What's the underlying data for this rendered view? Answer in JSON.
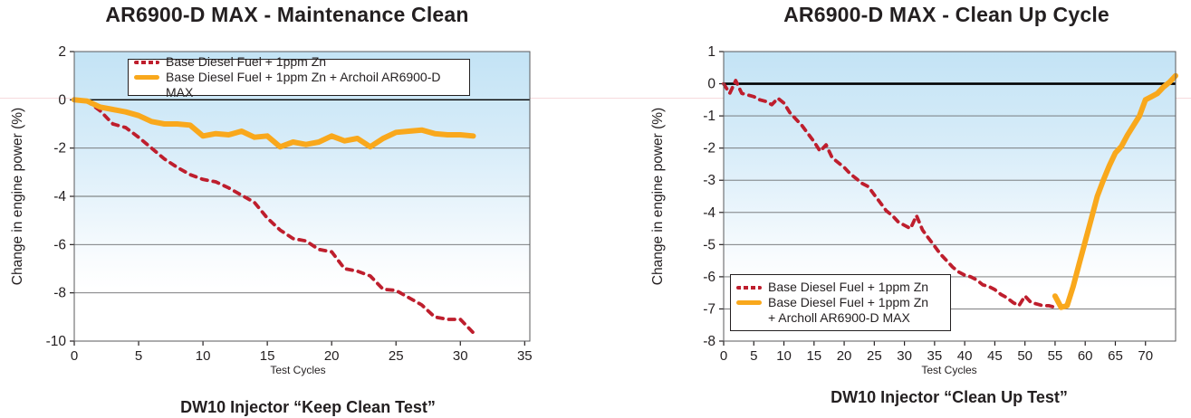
{
  "page": {
    "divider_line_color": "#f6dadd",
    "text_color": "#231f20",
    "grid_color": "#6b6c6e",
    "border_color": "#58595b"
  },
  "chart_data": [
    {
      "type": "line",
      "title": "AR6900-D MAX - Maintenance Clean",
      "caption": "DW10 Injector “Keep Clean Test”",
      "xlabel": "Test Cycles",
      "ylabel": "Change in engine power (%)",
      "xlim": [
        0,
        35.4
      ],
      "ylim": [
        -10,
        2
      ],
      "x_ticks": [
        0,
        5,
        10,
        15,
        20,
        25,
        30,
        35
      ],
      "y_ticks": [
        2,
        0,
        -2,
        -4,
        -6,
        -8,
        -10
      ],
      "grid": "horizontal",
      "zero_line_width": 1.3,
      "background_gradient": {
        "top": "#c3e3f5",
        "bottom": "#ffffff"
      },
      "legend": {
        "location": "top-center-inside",
        "entries": [
          {
            "label": "Base Diesel Fuel + 1ppm Zn",
            "color": "#be1e2d",
            "style": "dashed"
          },
          {
            "label": "Base Diesel Fuel + 1ppm Zn + Archoil AR6900-D MAX",
            "color": "#f9a81c",
            "style": "solid"
          }
        ]
      },
      "series": [
        {
          "name": "Base Diesel Fuel + 1ppm Zn",
          "color": "#be1e2d",
          "style": "dashed",
          "line_width": 3.8,
          "points": [
            [
              0,
              0
            ],
            [
              1,
              -0.05
            ],
            [
              2,
              -0.45
            ],
            [
              3,
              -1.0
            ],
            [
              4,
              -1.15
            ],
            [
              5,
              -1.55
            ],
            [
              6,
              -2.0
            ],
            [
              7,
              -2.45
            ],
            [
              8,
              -2.8
            ],
            [
              9,
              -3.1
            ],
            [
              10,
              -3.3
            ],
            [
              11,
              -3.4
            ],
            [
              12,
              -3.65
            ],
            [
              13,
              -3.95
            ],
            [
              14,
              -4.25
            ],
            [
              15,
              -4.9
            ],
            [
              16,
              -5.4
            ],
            [
              17,
              -5.75
            ],
            [
              18,
              -5.85
            ],
            [
              19,
              -6.2
            ],
            [
              20,
              -6.3
            ],
            [
              21,
              -7.0
            ],
            [
              22,
              -7.1
            ],
            [
              23,
              -7.3
            ],
            [
              24,
              -7.85
            ],
            [
              25,
              -7.9
            ],
            [
              26,
              -8.2
            ],
            [
              27,
              -8.5
            ],
            [
              28,
              -9.0
            ],
            [
              29,
              -9.1
            ],
            [
              30,
              -9.1
            ],
            [
              31,
              -9.65
            ]
          ]
        },
        {
          "name": "Base Diesel Fuel + 1ppm Zn + Archoil AR6900-D MAX",
          "color": "#f9a81c",
          "style": "solid",
          "line_width": 6,
          "points": [
            [
              0,
              0
            ],
            [
              1,
              -0.05
            ],
            [
              2,
              -0.3
            ],
            [
              3,
              -0.4
            ],
            [
              4,
              -0.5
            ],
            [
              5,
              -0.65
            ],
            [
              6,
              -0.9
            ],
            [
              7,
              -1.0
            ],
            [
              8,
              -1.0
            ],
            [
              9,
              -1.05
            ],
            [
              10,
              -1.5
            ],
            [
              11,
              -1.4
            ],
            [
              12,
              -1.45
            ],
            [
              13,
              -1.3
            ],
            [
              14,
              -1.55
            ],
            [
              15,
              -1.5
            ],
            [
              16,
              -1.95
            ],
            [
              17,
              -1.75
            ],
            [
              18,
              -1.85
            ],
            [
              19,
              -1.75
            ],
            [
              20,
              -1.5
            ],
            [
              21,
              -1.7
            ],
            [
              22,
              -1.6
            ],
            [
              23,
              -1.95
            ],
            [
              24,
              -1.6
            ],
            [
              25,
              -1.35
            ],
            [
              26,
              -1.3
            ],
            [
              27,
              -1.25
            ],
            [
              28,
              -1.4
            ],
            [
              29,
              -1.45
            ],
            [
              30,
              -1.45
            ],
            [
              31,
              -1.5
            ]
          ]
        }
      ]
    },
    {
      "type": "line",
      "title": "AR6900-D MAX - Clean Up Cycle",
      "caption": "DW10 Injector “Clean Up Test”",
      "xlabel": "Test Cycles",
      "ylabel": "Change in engine power (%)",
      "xlim": [
        0,
        75
      ],
      "ylim": [
        -8,
        1
      ],
      "x_ticks": [
        0,
        5,
        10,
        15,
        20,
        25,
        30,
        35,
        40,
        45,
        50,
        55,
        60,
        65,
        70
      ],
      "y_ticks": [
        1,
        0,
        -1,
        -2,
        -3,
        -4,
        -5,
        -6,
        -7,
        -8
      ],
      "grid": "horizontal",
      "zero_line_width": 2.6,
      "background_gradient": {
        "top": "#c3e3f5",
        "bottom": "#ffffff"
      },
      "legend": {
        "location": "bottom-left-inside",
        "entries": [
          {
            "label": "Base Diesel Fuel + 1ppm Zn",
            "color": "#be1e2d",
            "style": "dashed"
          },
          {
            "label": "Base Diesel Fuel + 1ppm Zn\n+ Archoll AR6900-D MAX",
            "color": "#f9a81c",
            "style": "solid"
          }
        ]
      },
      "series": [
        {
          "name": "Base Diesel Fuel + 1ppm Zn",
          "color": "#be1e2d",
          "style": "dashed",
          "line_width": 3.8,
          "points": [
            [
              0,
              0
            ],
            [
              1,
              -0.3
            ],
            [
              2,
              0.1
            ],
            [
              3,
              -0.3
            ],
            [
              4,
              -0.35
            ],
            [
              5,
              -0.4
            ],
            [
              6,
              -0.5
            ],
            [
              7,
              -0.55
            ],
            [
              8,
              -0.65
            ],
            [
              9,
              -0.45
            ],
            [
              10,
              -0.6
            ],
            [
              11,
              -0.9
            ],
            [
              12,
              -1.1
            ],
            [
              13,
              -1.3
            ],
            [
              14,
              -1.55
            ],
            [
              15,
              -1.8
            ],
            [
              16,
              -2.1
            ],
            [
              17,
              -1.9
            ],
            [
              18,
              -2.3
            ],
            [
              19,
              -2.45
            ],
            [
              20,
              -2.6
            ],
            [
              21,
              -2.8
            ],
            [
              22,
              -2.95
            ],
            [
              23,
              -3.1
            ],
            [
              24,
              -3.2
            ],
            [
              25,
              -3.45
            ],
            [
              26,
              -3.7
            ],
            [
              27,
              -3.95
            ],
            [
              28,
              -4.1
            ],
            [
              29,
              -4.3
            ],
            [
              30,
              -4.4
            ],
            [
              31,
              -4.5
            ],
            [
              32,
              -4.1
            ],
            [
              33,
              -4.55
            ],
            [
              34,
              -4.8
            ],
            [
              35,
              -5.05
            ],
            [
              36,
              -5.3
            ],
            [
              37,
              -5.5
            ],
            [
              38,
              -5.7
            ],
            [
              39,
              -5.85
            ],
            [
              40,
              -5.95
            ],
            [
              41,
              -6.0
            ],
            [
              42,
              -6.1
            ],
            [
              43,
              -6.25
            ],
            [
              44,
              -6.3
            ],
            [
              45,
              -6.4
            ],
            [
              46,
              -6.55
            ],
            [
              47,
              -6.65
            ],
            [
              48,
              -6.8
            ],
            [
              49,
              -6.9
            ],
            [
              50,
              -6.6
            ],
            [
              51,
              -6.8
            ],
            [
              52,
              -6.85
            ],
            [
              53,
              -6.9
            ],
            [
              54,
              -6.9
            ],
            [
              55,
              -6.95
            ]
          ]
        },
        {
          "name": "Base Diesel Fuel + 1ppm Zn + Archoll AR6900-D MAX",
          "color": "#f9a81c",
          "style": "solid",
          "line_width": 6,
          "points": [
            [
              55,
              -6.6
            ],
            [
              56,
              -6.95
            ],
            [
              57,
              -6.9
            ],
            [
              58,
              -6.3
            ],
            [
              59,
              -5.6
            ],
            [
              60,
              -4.9
            ],
            [
              61,
              -4.2
            ],
            [
              62,
              -3.5
            ],
            [
              63,
              -3.0
            ],
            [
              64,
              -2.55
            ],
            [
              65,
              -2.15
            ],
            [
              66,
              -1.95
            ],
            [
              67,
              -1.6
            ],
            [
              68,
              -1.3
            ],
            [
              69,
              -1.0
            ],
            [
              70,
              -0.5
            ],
            [
              71,
              -0.4
            ],
            [
              72,
              -0.3
            ],
            [
              73,
              -0.1
            ],
            [
              74,
              0.05
            ],
            [
              75,
              0.25
            ]
          ]
        }
      ]
    }
  ]
}
